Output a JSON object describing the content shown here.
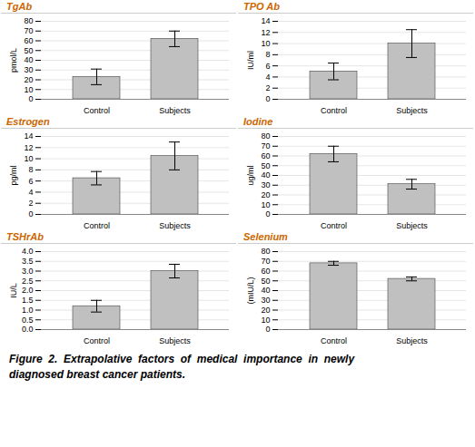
{
  "chart_data": [
    {
      "type": "bar",
      "title": "TgAb",
      "ylabel": "pmol/L",
      "categories": [
        "Control",
        "Subjects"
      ],
      "values": [
        23,
        62
      ],
      "errors": [
        8,
        8
      ],
      "color": "#c0c0c0",
      "ylim": [
        0,
        80
      ],
      "yticks": [
        0,
        10,
        20,
        30,
        40,
        50,
        60,
        70,
        80
      ],
      "grid": true
    },
    {
      "type": "bar",
      "title": "TPO Ab",
      "ylabel": "IU/ml",
      "categories": [
        "Control",
        "Subjects"
      ],
      "values": [
        5,
        10
      ],
      "errors": [
        1.5,
        2.5
      ],
      "color": "#c0c0c0",
      "ylim": [
        0,
        14
      ],
      "yticks": [
        0,
        2,
        4,
        6,
        8,
        10,
        12,
        14
      ],
      "grid": true
    },
    {
      "type": "bar",
      "title": "Estrogen",
      "ylabel": "pg/ml",
      "categories": [
        "Control",
        "Subjects"
      ],
      "values": [
        6.5,
        10.5
      ],
      "errors": [
        1.2,
        2.5
      ],
      "color": "#c0c0c0",
      "ylim": [
        0,
        14
      ],
      "yticks": [
        0,
        2,
        4,
        6,
        8,
        10,
        12,
        14
      ],
      "grid": true
    },
    {
      "type": "bar",
      "title": "Iodine",
      "ylabel": "ug/ml",
      "categories": [
        "Control",
        "Subjects"
      ],
      "values": [
        62,
        31
      ],
      "errors": [
        8,
        5
      ],
      "color": "#c0c0c0",
      "ylim": [
        0,
        80
      ],
      "yticks": [
        0,
        10,
        20,
        30,
        40,
        50,
        60,
        70,
        80
      ],
      "grid": true
    },
    {
      "type": "bar",
      "title": "TSHrAb",
      "ylabel": "IU/L",
      "categories": [
        "Control",
        "Subjects"
      ],
      "values": [
        1.2,
        3.0
      ],
      "errors": [
        0.3,
        0.35
      ],
      "color": "#c0c0c0",
      "ylim": [
        0,
        4
      ],
      "yticks": [
        {
          "value": 0,
          "label": "0.0"
        },
        0.5,
        {
          "value": 1,
          "label": "1.0"
        },
        1.5,
        {
          "value": 2,
          "label": "2.0"
        },
        2.5,
        {
          "value": 3,
          "label": "3.0"
        },
        3.5,
        {
          "value": 4,
          "label": "4.0"
        }
      ],
      "grid": true
    },
    {
      "type": "bar",
      "title": "Selenium",
      "ylabel": "(mIU/L)",
      "categories": [
        "Control",
        "Subjects"
      ],
      "values": [
        68,
        52
      ],
      "errors": [
        2,
        2
      ],
      "color": "#c0c0c0",
      "ylim": [
        0,
        80
      ],
      "yticks": [
        0,
        10,
        20,
        30,
        40,
        50,
        60,
        70,
        80
      ],
      "grid": true
    }
  ],
  "caption": [
    "Figure  2.  Extrapolative  factors  of  medical  importance  in  newly",
    "diagnosed breast cancer patients."
  ]
}
